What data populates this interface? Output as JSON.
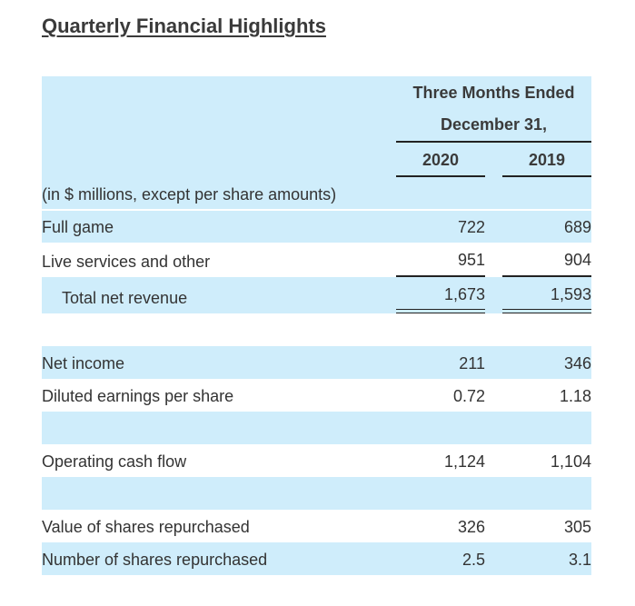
{
  "title": "Quarterly Financial Highlights",
  "header": {
    "period_line1": "Three Months Ended",
    "period_line2": "December 31,",
    "col1": "2020",
    "col2": "2019"
  },
  "units_note": "(in $ millions, except per share amounts)",
  "rows": [
    {
      "label": "Full game",
      "v2020": "722",
      "v2019": "689"
    },
    {
      "label": "Live services and other",
      "v2020": "951",
      "v2019": "904"
    },
    {
      "label": "Total net revenue",
      "v2020": "1,673",
      "v2019": "1,593"
    },
    {
      "label": "Net income",
      "v2020": "211",
      "v2019": "346"
    },
    {
      "label": "Diluted earnings per share",
      "v2020": "0.72",
      "v2019": "1.18"
    },
    {
      "label": "Operating cash flow",
      "v2020": "1,124",
      "v2019": "1,104"
    },
    {
      "label": "Value of shares repurchased",
      "v2020": "326",
      "v2019": "305"
    },
    {
      "label": "Number of shares repurchased",
      "v2020": "2.5",
      "v2019": "3.1"
    }
  ],
  "colors": {
    "band": "#cfedfb",
    "text": "#333333",
    "rule": "#222222"
  }
}
